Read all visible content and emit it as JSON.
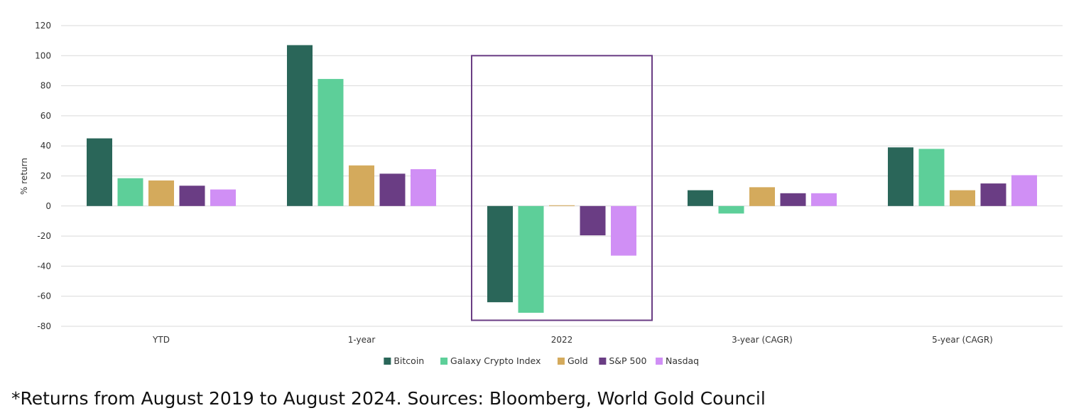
{
  "chart_data": {
    "type": "bar",
    "ylabel": "% return",
    "ylim": [
      -80,
      120
    ],
    "yticks": [
      120,
      100,
      80,
      60,
      40,
      20,
      0,
      -20,
      -40,
      -60,
      -80
    ],
    "grid": true,
    "legend_position": "bottom",
    "categories": [
      "YTD",
      "1-year",
      "2022",
      "3-year (CAGR)",
      "5-year (CAGR)"
    ],
    "highlighted_category": "2022",
    "series": [
      {
        "name": "Bitcoin",
        "color": "#2a6659",
        "values": [
          45,
          107,
          -64,
          10.5,
          39
        ]
      },
      {
        "name": "Galaxy Crypto Index",
        "color": "#5dcf99",
        "values": [
          18.5,
          84.5,
          -71,
          -5,
          38
        ]
      },
      {
        "name": "Gold",
        "color": "#d4aa5c",
        "values": [
          17,
          27,
          0.5,
          12.5,
          10.5
        ]
      },
      {
        "name": "S&P 500",
        "color": "#6a3d84",
        "values": [
          13.5,
          21.5,
          -19.5,
          8.5,
          15
        ]
      },
      {
        "name": "Nasdaq",
        "color": "#d08ff5",
        "values": [
          11,
          24.5,
          -33,
          8.5,
          20.5
        ]
      }
    ]
  },
  "footnote": "*Returns from August 2019 to August 2024. Sources: Bloomberg, World Gold Council",
  "highlight_color": "#6a3d84",
  "grid_color": "#d9d9d9"
}
